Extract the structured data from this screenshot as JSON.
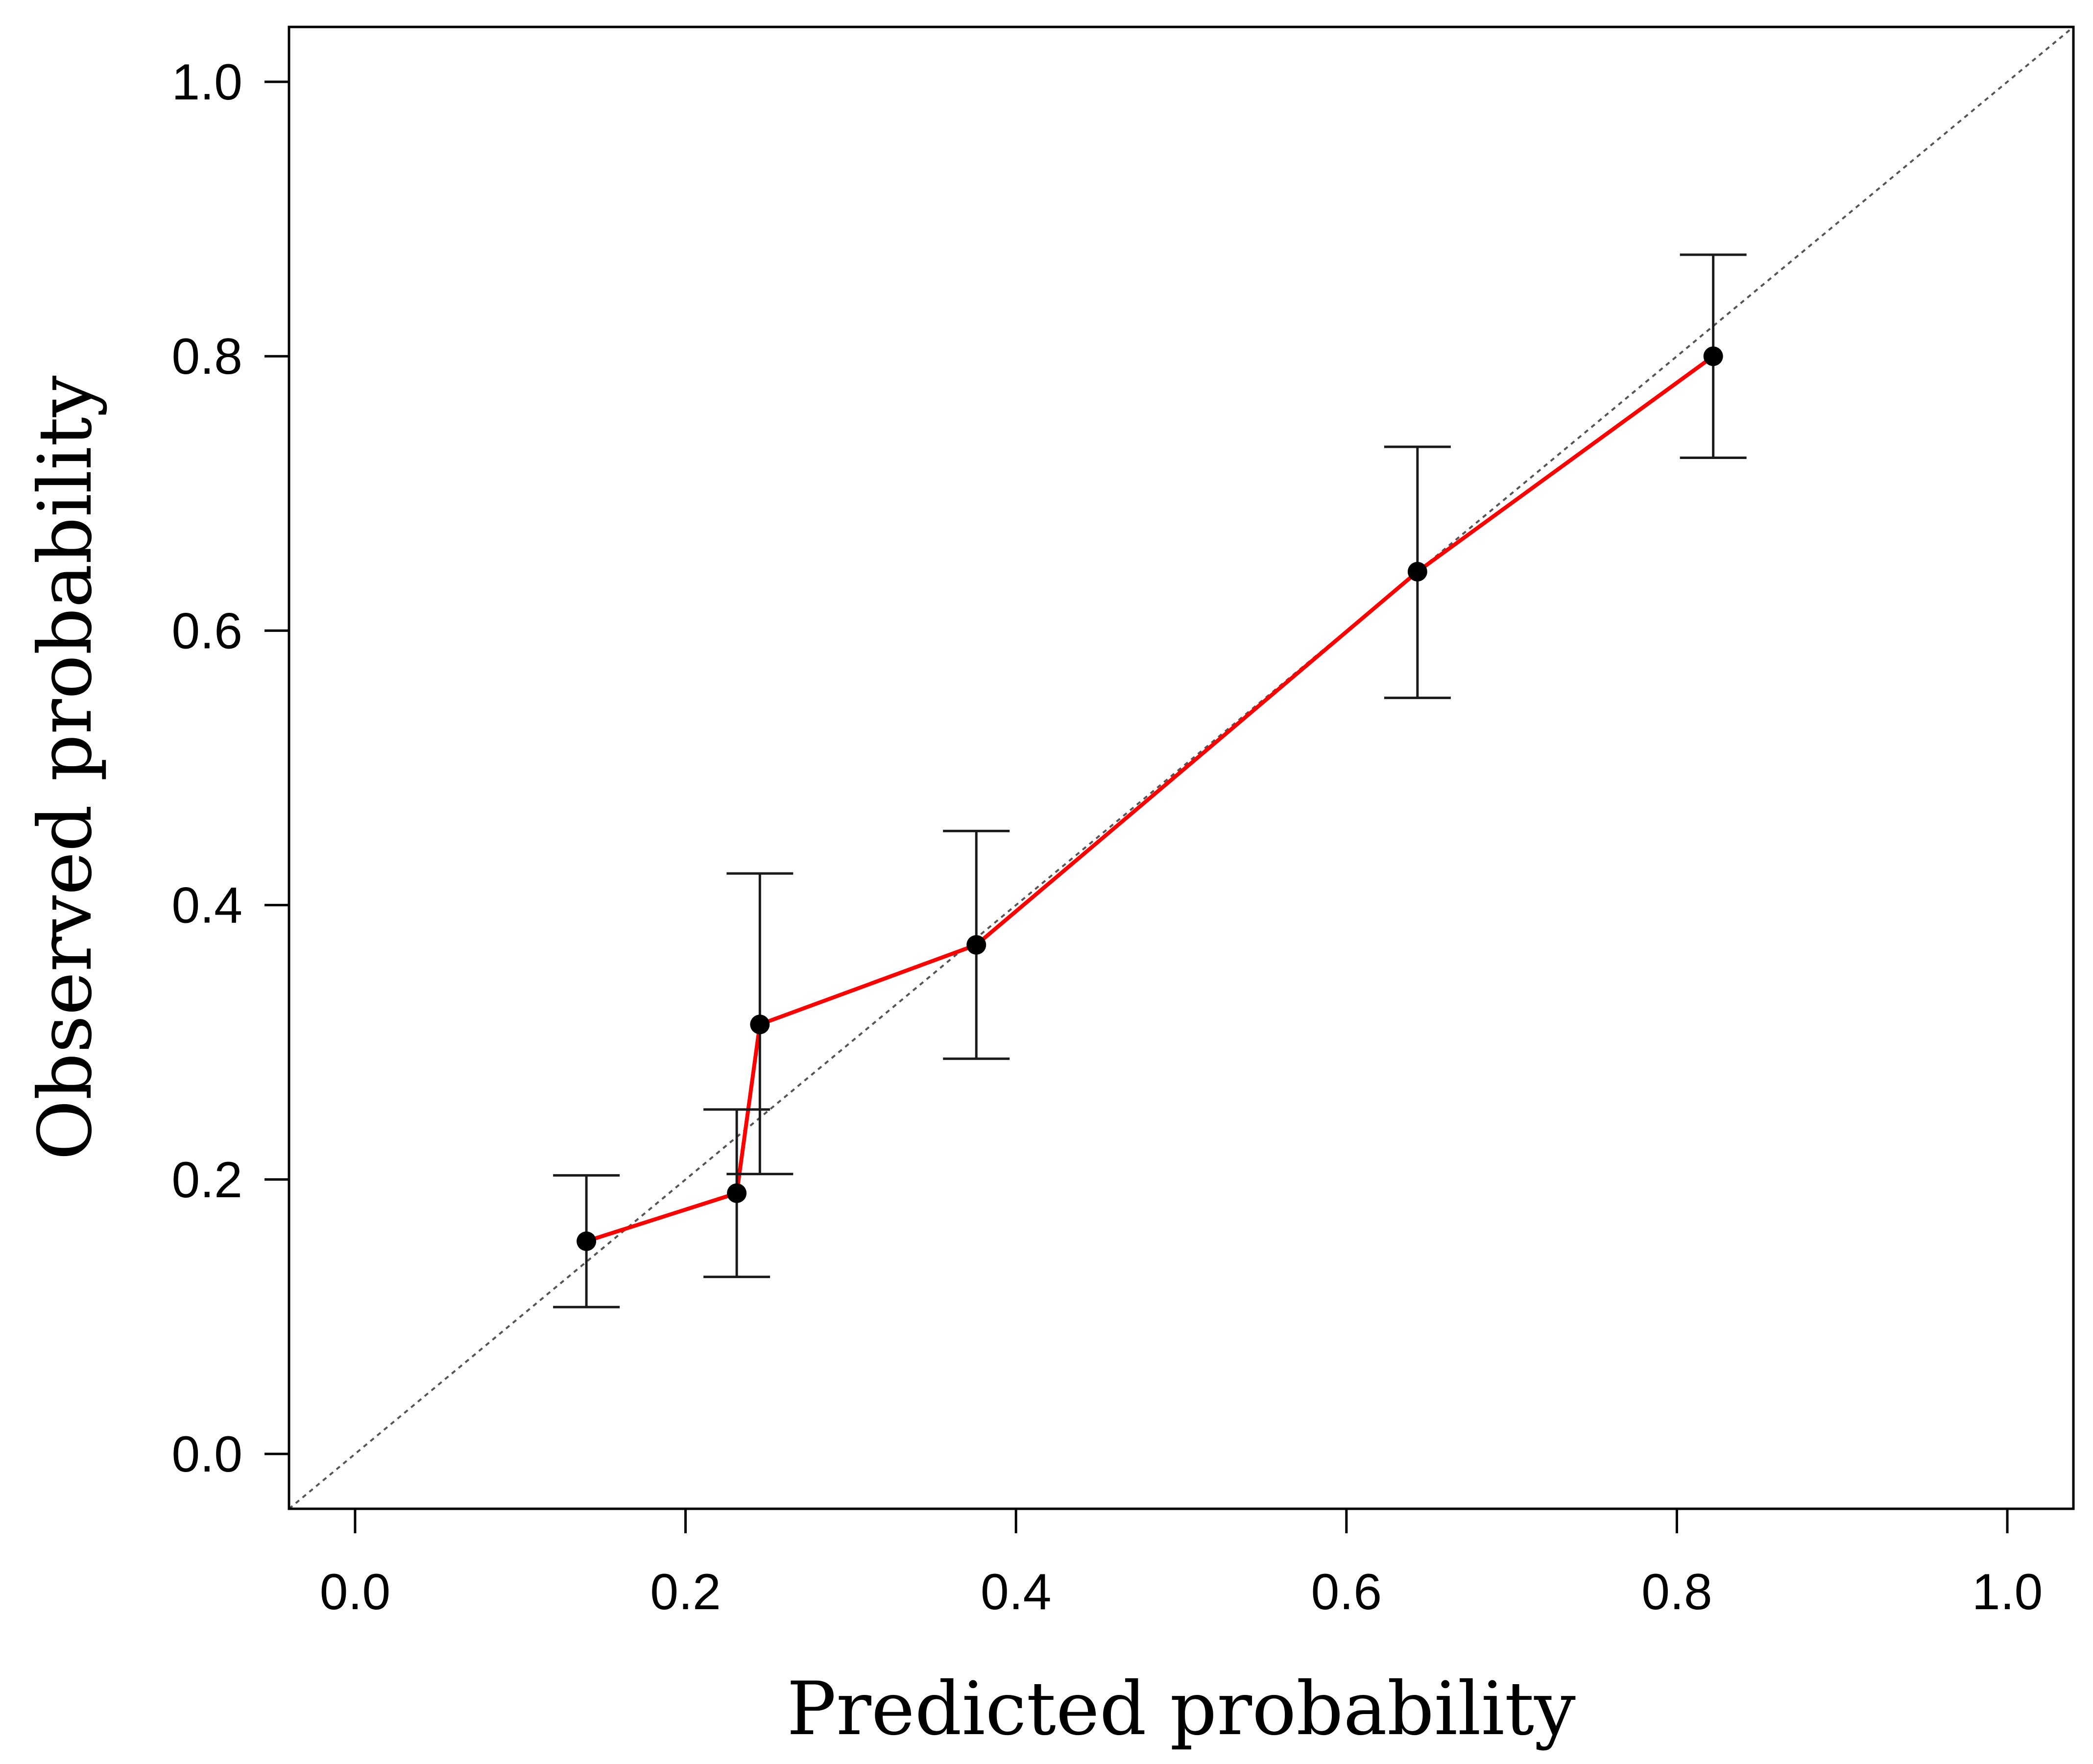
{
  "chart_data": {
    "type": "line",
    "title": "",
    "xlabel": "Predicted probability",
    "ylabel": "Observed probability",
    "xlim": [
      -0.04,
      1.04
    ],
    "ylim": [
      -0.04,
      1.04
    ],
    "xticks": [
      "0.0",
      "0.2",
      "0.4",
      "0.6",
      "0.8",
      "1.0"
    ],
    "yticks": [
      "0.0",
      "0.2",
      "0.4",
      "0.6",
      "0.8",
      "1.0"
    ],
    "grid": false,
    "reference_line": {
      "name": "ideal",
      "from": [
        -0.04,
        -0.04
      ],
      "to": [
        1.04,
        1.04
      ],
      "style": "dotted",
      "color": "#555555"
    },
    "series": [
      {
        "name": "calibration",
        "color": "#ff0000",
        "marker_color": "#000000",
        "points": [
          {
            "x": 0.14,
            "y": 0.155,
            "lower": 0.107,
            "upper": 0.203
          },
          {
            "x": 0.231,
            "y": 0.19,
            "lower": 0.129,
            "upper": 0.251
          },
          {
            "x": 0.245,
            "y": 0.313,
            "lower": 0.204,
            "upper": 0.423
          },
          {
            "x": 0.376,
            "y": 0.371,
            "lower": 0.288,
            "upper": 0.454
          },
          {
            "x": 0.643,
            "y": 0.643,
            "lower": 0.551,
            "upper": 0.734
          },
          {
            "x": 0.822,
            "y": 0.8,
            "lower": 0.726,
            "upper": 0.874
          }
        ]
      }
    ]
  }
}
